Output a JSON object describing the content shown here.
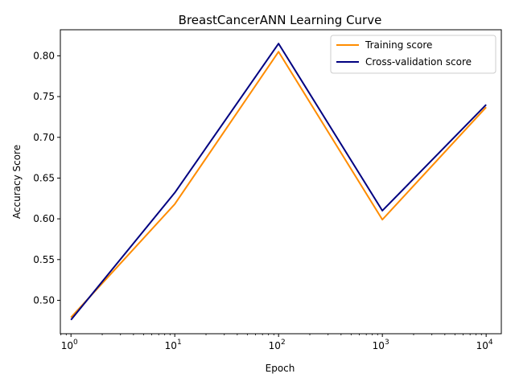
{
  "chart_data": {
    "type": "line",
    "title": "BreastCancerANN Learning Curve",
    "xlabel": "Epoch",
    "ylabel": "Accuracy Score",
    "xscale": "log",
    "xlim": [
      0.79,
      14000
    ],
    "ylim": [
      0.459,
      0.832
    ],
    "x": [
      1,
      10,
      100,
      1000,
      10000
    ],
    "xticks": [
      {
        "value": 1,
        "base": "10",
        "exp": "0"
      },
      {
        "value": 10,
        "base": "10",
        "exp": "1"
      },
      {
        "value": 100,
        "base": "10",
        "exp": "2"
      },
      {
        "value": 1000,
        "base": "10",
        "exp": "3"
      },
      {
        "value": 10000,
        "base": "10",
        "exp": "4"
      }
    ],
    "yticks": [
      {
        "value": 0.5,
        "label": "0.50"
      },
      {
        "value": 0.55,
        "label": "0.55"
      },
      {
        "value": 0.6,
        "label": "0.60"
      },
      {
        "value": 0.65,
        "label": "0.65"
      },
      {
        "value": 0.7,
        "label": "0.70"
      },
      {
        "value": 0.75,
        "label": "0.75"
      },
      {
        "value": 0.8,
        "label": "0.80"
      }
    ],
    "series": [
      {
        "name": "Training score",
        "color": "#ff8c00",
        "values": [
          0.479,
          0.618,
          0.805,
          0.599,
          0.737
        ]
      },
      {
        "name": "Cross-validation score",
        "color": "#000080",
        "values": [
          0.476,
          0.632,
          0.815,
          0.61,
          0.74
        ]
      }
    ],
    "legend": "top-right",
    "grid": false
  }
}
